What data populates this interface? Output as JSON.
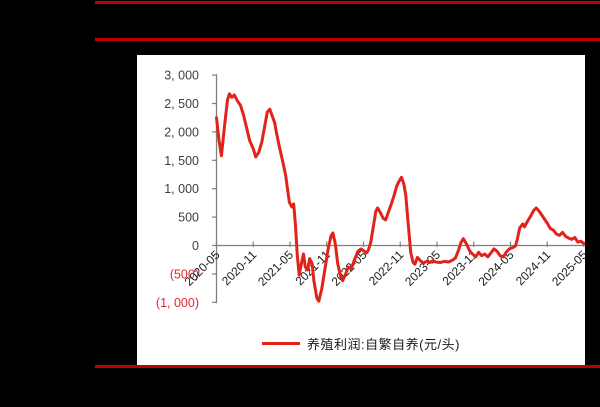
{
  "colors": {
    "background": "#000000",
    "panel": "#FFFFFF",
    "border_rule_red": "#C00000",
    "line_red": "#E2231A",
    "negative_tick_red": "#E8242B",
    "axis_gray": "#7F7F7F",
    "tick_text_dark": "#3F3F3F",
    "x_tick_text": "#1A1A1A"
  },
  "chart_data": {
    "type": "line",
    "title": "",
    "xlabel": "",
    "ylabel": "",
    "ylim": [
      -1000,
      3000
    ],
    "grid": false,
    "legend_position": "bottom-center",
    "y_ticks": [
      {
        "label": "3, 000",
        "value": 3000,
        "negative": false
      },
      {
        "label": "2, 500",
        "value": 2500,
        "negative": false
      },
      {
        "label": "2, 000",
        "value": 2000,
        "negative": false
      },
      {
        "label": "1, 500",
        "value": 1500,
        "negative": false
      },
      {
        "label": "1, 000",
        "value": 1000,
        "negative": false
      },
      {
        "label": "500",
        "value": 500,
        "negative": false
      },
      {
        "label": "0",
        "value": 0,
        "negative": false
      },
      {
        "label": "(500)",
        "value": -500,
        "negative": true
      },
      {
        "label": "(1, 000)",
        "value": -1000,
        "negative": true
      }
    ],
    "x_ticks": [
      {
        "label": "2020-05",
        "month_index": 0
      },
      {
        "label": "2020-11",
        "month_index": 6
      },
      {
        "label": "2021-05",
        "month_index": 12
      },
      {
        "label": "2021-11",
        "month_index": 18
      },
      {
        "label": "2022-05",
        "month_index": 24
      },
      {
        "label": "2022-11",
        "month_index": 30
      },
      {
        "label": "2023-05",
        "month_index": 36
      },
      {
        "label": "2023-11",
        "month_index": 42
      },
      {
        "label": "2024-05",
        "month_index": 48
      },
      {
        "label": "2024-11",
        "month_index": 54
      },
      {
        "label": "2025-05",
        "month_index": 60
      }
    ],
    "x_axis_months_span": 60,
    "series": [
      {
        "name": "养殖利润:自繁自养(元/头)",
        "unit": "元/头",
        "color": "#E2231A",
        "points_month_value": [
          [
            0,
            2250
          ],
          [
            0.4,
            1850
          ],
          [
            0.8,
            1580
          ],
          [
            1.3,
            2100
          ],
          [
            1.8,
            2560
          ],
          [
            2.1,
            2670
          ],
          [
            2.5,
            2610
          ],
          [
            2.9,
            2650
          ],
          [
            3.4,
            2550
          ],
          [
            3.9,
            2470
          ],
          [
            4.4,
            2300
          ],
          [
            4.9,
            2080
          ],
          [
            5.4,
            1850
          ],
          [
            6,
            1700
          ],
          [
            6.4,
            1560
          ],
          [
            6.9,
            1640
          ],
          [
            7.4,
            1820
          ],
          [
            7.9,
            2120
          ],
          [
            8.3,
            2350
          ],
          [
            8.7,
            2400
          ],
          [
            9,
            2310
          ],
          [
            9.5,
            2160
          ],
          [
            9.8,
            1980
          ],
          [
            10.3,
            1720
          ],
          [
            10.8,
            1480
          ],
          [
            11.3,
            1230
          ],
          [
            11.6,
            980
          ],
          [
            11.9,
            760
          ],
          [
            12.3,
            680
          ],
          [
            12.6,
            730
          ],
          [
            12.9,
            350
          ],
          [
            13.2,
            -180
          ],
          [
            13.5,
            -520
          ],
          [
            13.9,
            -300
          ],
          [
            14.2,
            -150
          ],
          [
            14.5,
            -380
          ],
          [
            14.9,
            -430
          ],
          [
            15.2,
            -230
          ],
          [
            15.6,
            -320
          ],
          [
            15.9,
            -620
          ],
          [
            16.4,
            -930
          ],
          [
            16.7,
            -980
          ],
          [
            17.2,
            -760
          ],
          [
            17.7,
            -420
          ],
          [
            18.2,
            -80
          ],
          [
            18.7,
            170
          ],
          [
            19,
            220
          ],
          [
            19.4,
            30
          ],
          [
            19.8,
            -330
          ],
          [
            20.3,
            -550
          ],
          [
            20.6,
            -620
          ],
          [
            21.1,
            -500
          ],
          [
            21.5,
            -380
          ],
          [
            22,
            -410
          ],
          [
            22.5,
            -260
          ],
          [
            23.1,
            -100
          ],
          [
            23.6,
            -60
          ],
          [
            24.1,
            -100
          ],
          [
            24.5,
            -130
          ],
          [
            24.8,
            -80
          ],
          [
            25.2,
            60
          ],
          [
            25.6,
            330
          ],
          [
            26,
            600
          ],
          [
            26.3,
            660
          ],
          [
            26.7,
            590
          ],
          [
            27.2,
            480
          ],
          [
            27.6,
            450
          ],
          [
            28,
            570
          ],
          [
            28.5,
            720
          ],
          [
            29,
            880
          ],
          [
            29.4,
            1040
          ],
          [
            29.8,
            1130
          ],
          [
            30.2,
            1200
          ],
          [
            30.6,
            1080
          ],
          [
            30.9,
            880
          ],
          [
            31.3,
            380
          ],
          [
            31.7,
            -120
          ],
          [
            32.1,
            -300
          ],
          [
            32.4,
            -330
          ],
          [
            32.8,
            -210
          ],
          [
            33.3,
            -270
          ],
          [
            33.8,
            -310
          ],
          [
            34.3,
            -280
          ],
          [
            34.8,
            -300
          ],
          [
            35.3,
            -270
          ],
          [
            35.8,
            -290
          ],
          [
            36.5,
            -300
          ],
          [
            37.2,
            -280
          ],
          [
            37.9,
            -290
          ],
          [
            38.5,
            -260
          ],
          [
            39,
            -220
          ],
          [
            39.5,
            -90
          ],
          [
            39.9,
            50
          ],
          [
            40.3,
            120
          ],
          [
            40.8,
            30
          ],
          [
            41.3,
            -90
          ],
          [
            41.8,
            -150
          ],
          [
            42.3,
            -200
          ],
          [
            42.8,
            -120
          ],
          [
            43.3,
            -180
          ],
          [
            43.8,
            -150
          ],
          [
            44.3,
            -200
          ],
          [
            44.8,
            -130
          ],
          [
            45.3,
            -60
          ],
          [
            45.8,
            -100
          ],
          [
            46.3,
            -180
          ],
          [
            46.8,
            -200
          ],
          [
            47.3,
            -120
          ],
          [
            47.8,
            -60
          ],
          [
            48.3,
            -40
          ],
          [
            48.8,
            -10
          ],
          [
            49.1,
            100
          ],
          [
            49.5,
            310
          ],
          [
            50,
            380
          ],
          [
            50.3,
            330
          ],
          [
            50.8,
            430
          ],
          [
            51.3,
            520
          ],
          [
            51.8,
            620
          ],
          [
            52.2,
            660
          ],
          [
            52.7,
            600
          ],
          [
            53.2,
            520
          ],
          [
            53.7,
            440
          ],
          [
            54,
            390
          ],
          [
            54.5,
            300
          ],
          [
            55,
            270
          ],
          [
            55.5,
            200
          ],
          [
            56,
            180
          ],
          [
            56.5,
            230
          ],
          [
            57,
            160
          ],
          [
            57.5,
            130
          ],
          [
            58,
            110
          ],
          [
            58.5,
            140
          ],
          [
            59,
            60
          ],
          [
            59.5,
            75
          ],
          [
            59.8,
            45
          ],
          [
            60,
            35
          ]
        ]
      }
    ]
  }
}
